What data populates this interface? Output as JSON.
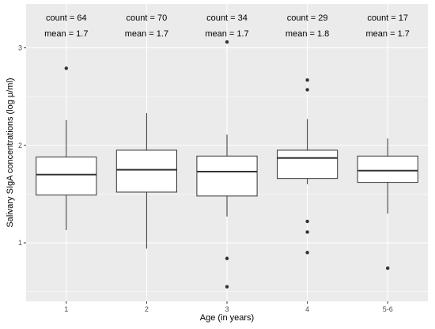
{
  "chart_data": {
    "type": "box",
    "xlabel": "Age (in years)",
    "ylabel": "Salivary SIgA concentrations (log μ/ml)",
    "ylim": [
      0.4,
      3.45
    ],
    "yticks": [
      1,
      2,
      3
    ],
    "grid": true,
    "categories": [
      "1",
      "2",
      "3",
      "4",
      "5-6"
    ],
    "boxes": [
      {
        "category": "1",
        "whisker_low": 1.13,
        "q1": 1.49,
        "median": 1.7,
        "q3": 1.88,
        "whisker_high": 2.26,
        "outliers": [
          2.79
        ],
        "count_label": "count = 64",
        "mean_label": "mean = 1.7"
      },
      {
        "category": "2",
        "whisker_low": 0.94,
        "q1": 1.52,
        "median": 1.75,
        "q3": 1.95,
        "whisker_high": 2.33,
        "outliers": [],
        "count_label": "count = 70",
        "mean_label": "mean = 1.7"
      },
      {
        "category": "3",
        "whisker_low": 1.27,
        "q1": 1.48,
        "median": 1.73,
        "q3": 1.89,
        "whisker_high": 2.11,
        "outliers": [
          3.06,
          0.84,
          0.55
        ],
        "count_label": "count = 34",
        "mean_label": "mean = 1.7"
      },
      {
        "category": "4",
        "whisker_low": 1.6,
        "q1": 1.66,
        "median": 1.87,
        "q3": 1.95,
        "whisker_high": 2.27,
        "outliers": [
          2.67,
          2.57,
          1.22,
          1.11,
          0.9
        ],
        "count_label": "count = 29",
        "mean_label": "mean = 1.8"
      },
      {
        "category": "5-6",
        "whisker_low": 1.3,
        "q1": 1.62,
        "median": 1.74,
        "q3": 1.89,
        "whisker_high": 2.07,
        "outliers": [
          0.74
        ],
        "count_label": "count = 17",
        "mean_label": "mean = 1.7"
      }
    ],
    "colors": {
      "panel": "#ebebeb",
      "grid_major": "#ffffff",
      "box_fill": "#ffffff",
      "box_stroke": "#333333",
      "outlier": "#333333"
    }
  }
}
